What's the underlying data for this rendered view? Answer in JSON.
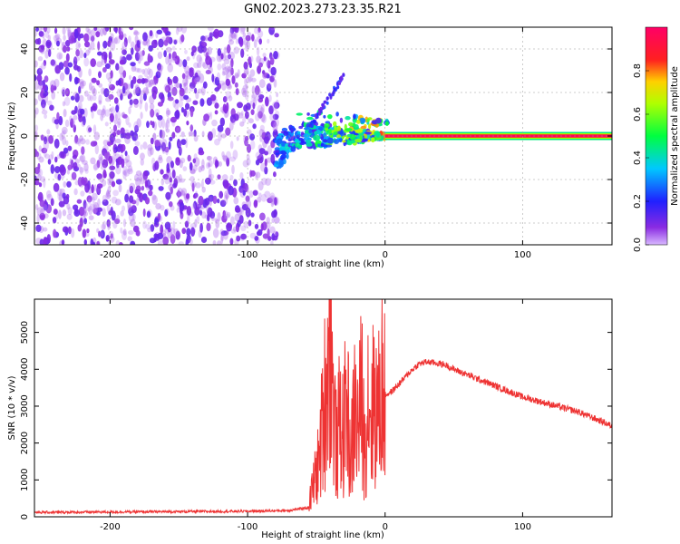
{
  "title": "GN02.2023.273.23.35.R21",
  "chart_data": [
    {
      "type": "heatmap",
      "xlabel": "Height of straight line (km)",
      "ylabel": "Frequency (Hz)",
      "xlim": [
        -255,
        165
      ],
      "ylim": [
        -50,
        50
      ],
      "x_ticks": [
        -200,
        -100,
        0,
        100
      ],
      "y_ticks": [
        -40,
        -20,
        0,
        20,
        40
      ],
      "grid": true,
      "colorbar": {
        "label": "Normalized spectral amplitude",
        "range": [
          0.0,
          1.0
        ],
        "ticks": [
          0.0,
          0.2,
          0.4,
          0.6,
          0.8
        ],
        "colormap": "rainbow (violet → blue → cyan → green → yellow → red → magenta)",
        "placement": "right"
      },
      "features": {
        "noise_region_x": [
          -255,
          -78
        ],
        "transition_region_x": [
          -80,
          2
        ],
        "narrow_line_region_x": [
          0,
          165
        ],
        "narrow_line_frequency": 0,
        "narrow_line_amplitude": 0.95
      }
    },
    {
      "type": "line",
      "xlabel": "Height of straight line (km)",
      "ylabel": "SNR (10 * v/v)",
      "xlim": [
        -255,
        165
      ],
      "ylim": [
        0,
        5900
      ],
      "x_ticks": [
        -200,
        -100,
        0,
        100
      ],
      "y_ticks": [
        0,
        1000,
        2000,
        3000,
        4000,
        5000
      ],
      "grid": false,
      "series": [
        {
          "color": "#ee3333",
          "x": [
            -255,
            -200,
            -150,
            -100,
            -70,
            -56,
            -52,
            -48,
            -45,
            -42,
            -40,
            -38,
            -35,
            -33,
            -30,
            -28,
            -25,
            -22,
            -20,
            -17,
            -15,
            -12,
            -10,
            -8,
            -5,
            -3,
            0,
            5,
            10,
            15,
            20,
            25,
            30,
            35,
            40,
            45,
            50,
            60,
            70,
            80,
            90,
            100,
            110,
            120,
            130,
            140,
            150,
            160,
            165
          ],
          "y": [
            120,
            130,
            140,
            150,
            170,
            250,
            900,
            1500,
            2800,
            3900,
            5800,
            3200,
            1700,
            2700,
            2200,
            3400,
            1500,
            3000,
            2400,
            3300,
            1800,
            3600,
            2500,
            3300,
            2700,
            3600,
            3300,
            3400,
            3600,
            3800,
            4000,
            4150,
            4200,
            4180,
            4150,
            4100,
            4000,
            3850,
            3700,
            3550,
            3400,
            3250,
            3150,
            3050,
            2950,
            2850,
            2700,
            2550,
            2450
          ]
        }
      ]
    }
  ]
}
